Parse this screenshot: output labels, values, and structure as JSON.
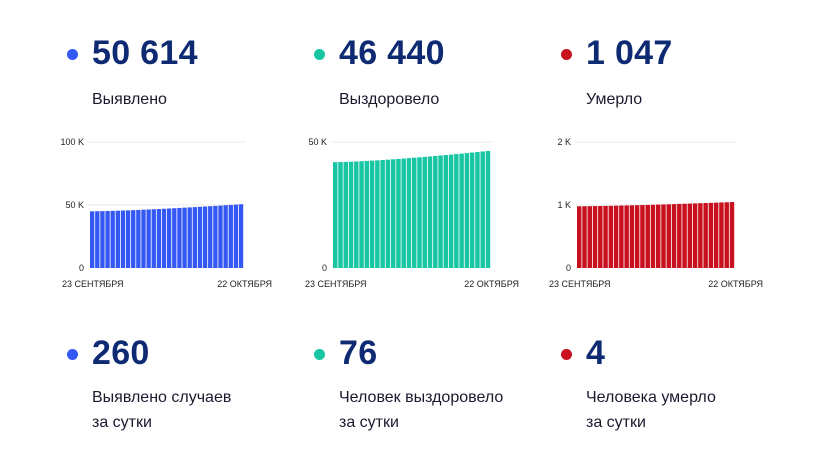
{
  "colors": {
    "blue": "#3358f4",
    "teal": "#19c6a4",
    "red": "#c8101e",
    "dark": "#0d2a73"
  },
  "totals": [
    {
      "value": "50 614",
      "label": "Выявлено",
      "color": "#3358f4"
    },
    {
      "value": "46 440",
      "label": "Выздоровело",
      "color": "#19c6a4"
    },
    {
      "value": "1 047",
      "label": "Умерло",
      "color": "#c8101e"
    }
  ],
  "daily": [
    {
      "value": "260",
      "line1": "Выявлено случаев",
      "line2": "за сутки",
      "color": "#3358f4"
    },
    {
      "value": "76",
      "line1": "Человек выздоровело",
      "line2": "за сутки",
      "color": "#19c6a4"
    },
    {
      "value": "4",
      "line1": "Человека умерло",
      "line2": "за сутки",
      "color": "#c8101e"
    }
  ],
  "chart_data": [
    {
      "type": "bar",
      "color": "#3358f4",
      "yticks": [
        "0",
        "50 K",
        "100 K"
      ],
      "ytick_values": [
        0,
        50000,
        100000
      ],
      "ylim": [
        0,
        100000
      ],
      "x_start_label": "23 СЕНТЯБРЯ",
      "x_end_label": "22 ОКТЯБРЯ",
      "grid": true,
      "bar_count": 30,
      "value_start": 45000,
      "value_end": 50614
    },
    {
      "type": "bar",
      "color": "#19c6a4",
      "yticks": [
        "0",
        "50 K"
      ],
      "ytick_values": [
        0,
        50000
      ],
      "ylim": [
        0,
        50000
      ],
      "x_start_label": "23 СЕНТЯБРЯ",
      "x_end_label": "22 ОКТЯБРЯ",
      "grid": true,
      "bar_count": 30,
      "value_start": 42000,
      "value_end": 46440
    },
    {
      "type": "bar",
      "color": "#c8101e",
      "yticks": [
        "0",
        "1 K",
        "2 K"
      ],
      "ytick_values": [
        0,
        1000,
        2000
      ],
      "ylim": [
        0,
        2000
      ],
      "x_start_label": "23 СЕНТЯБРЯ",
      "x_end_label": "22 ОКТЯБРЯ",
      "grid": true,
      "bar_count": 30,
      "value_start": 980,
      "value_end": 1047
    }
  ]
}
